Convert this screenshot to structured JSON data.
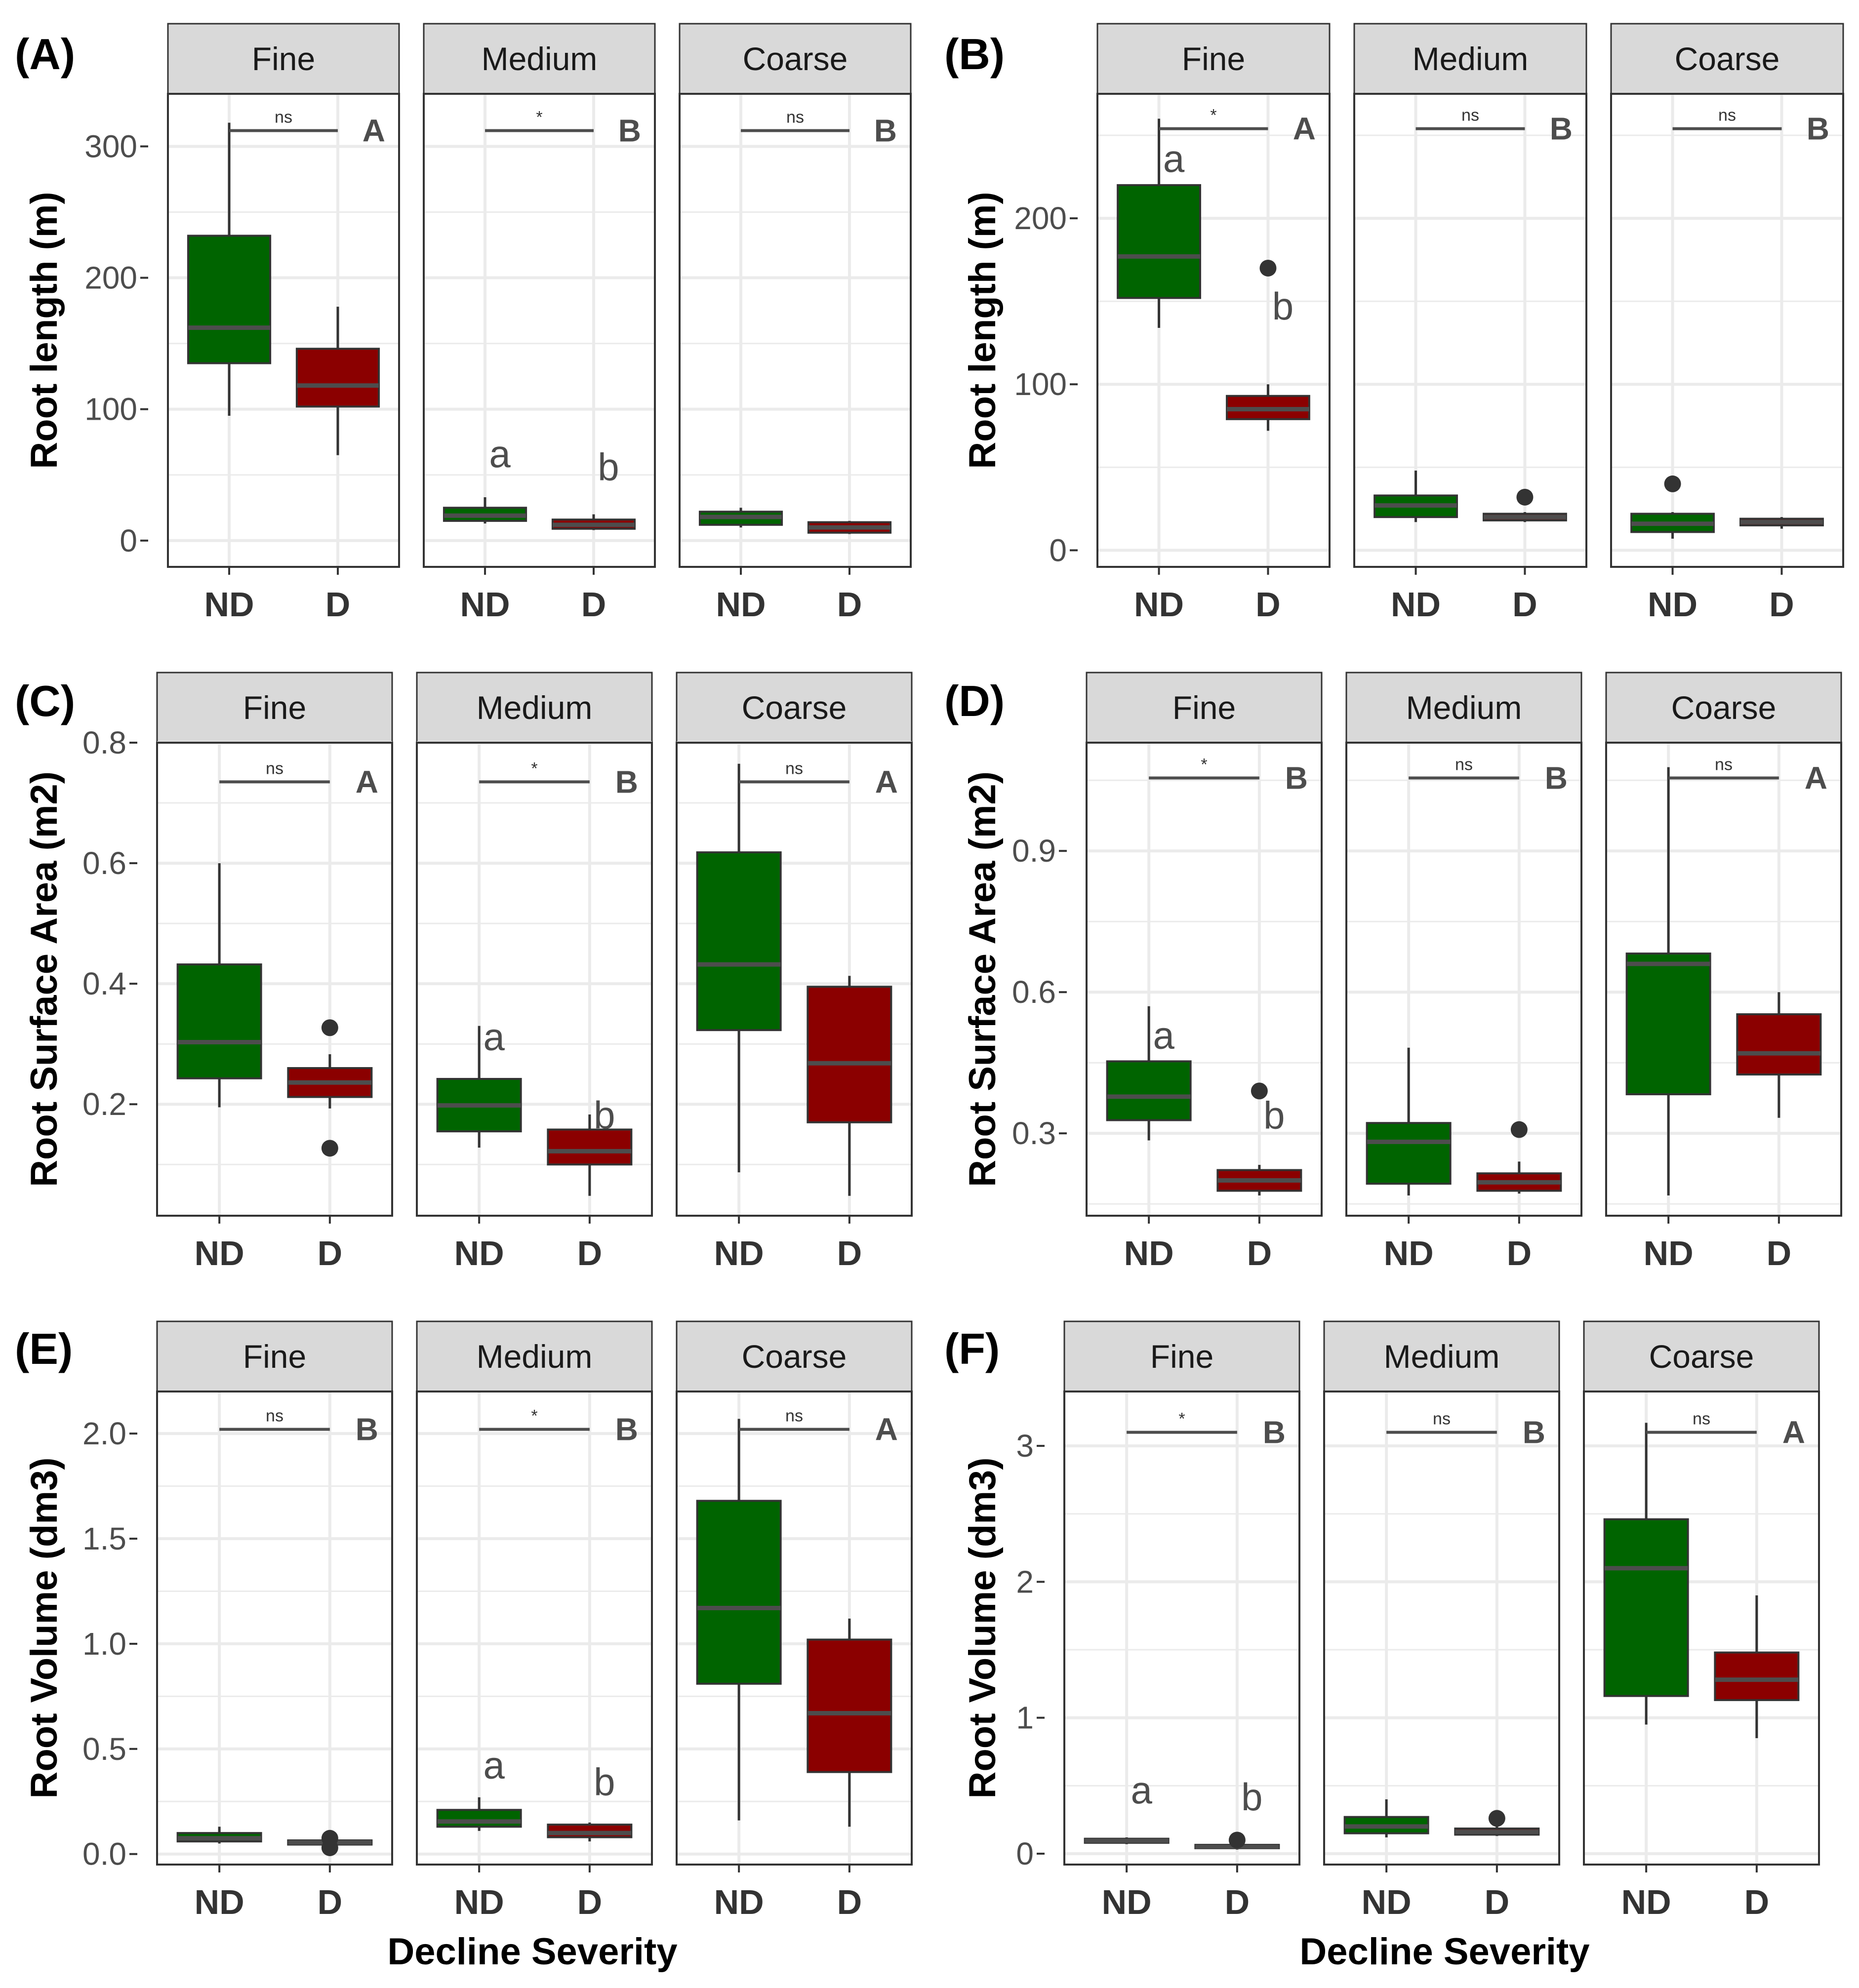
{
  "figure": {
    "x_axis_title": "Decline Severity",
    "facet_labels": [
      "Fine",
      "Medium",
      "Coarse"
    ],
    "x_categories": [
      "ND",
      "D"
    ],
    "colors": {
      "ND": "#006400",
      "D": "#8b0000",
      "strip_bg": "#d9d9d9",
      "grid": "#ebebeb",
      "median": "#4d4d4d"
    }
  },
  "chart_data": [
    {
      "type": "box",
      "panel_label": "(A)",
      "ylabel": "Root length (m)",
      "ylim": [
        -20,
        340
      ],
      "yticks": [
        0,
        100,
        200,
        300
      ],
      "yminor": [
        50,
        150,
        250
      ],
      "facets": [
        {
          "name": "Fine",
          "size_letter": "A",
          "sig": "ns",
          "sig_y": 312,
          "boxes": [
            {
              "category": "ND",
              "whisker_low": 95,
              "q1": 135,
              "median": 162,
              "q3": 232,
              "whisker_high": 318,
              "outliers": []
            },
            {
              "category": "D",
              "whisker_low": 65,
              "q1": 102,
              "median": 118,
              "q3": 146,
              "whisker_high": 178,
              "outliers": []
            }
          ],
          "group_letters": []
        },
        {
          "name": "Medium",
          "size_letter": "B",
          "sig": "*",
          "sig_y": 312,
          "boxes": [
            {
              "category": "ND",
              "whisker_low": 13,
              "q1": 15,
              "median": 19,
              "q3": 25,
              "whisker_high": 33,
              "outliers": []
            },
            {
              "category": "D",
              "whisker_low": 8,
              "q1": 9,
              "median": 12,
              "q3": 16,
              "whisker_high": 20,
              "outliers": []
            }
          ],
          "group_letters": [
            {
              "category": "ND",
              "text": "a",
              "y": 56
            },
            {
              "category": "D",
              "text": "b",
              "y": 46
            }
          ]
        },
        {
          "name": "Coarse",
          "size_letter": "B",
          "sig": "ns",
          "sig_y": 312,
          "boxes": [
            {
              "category": "ND",
              "whisker_low": 10,
              "q1": 12,
              "median": 18,
              "q3": 22,
              "whisker_high": 25,
              "outliers": []
            },
            {
              "category": "D",
              "whisker_low": 5,
              "q1": 6,
              "median": 10,
              "q3": 14,
              "whisker_high": 15,
              "outliers": []
            }
          ],
          "group_letters": []
        }
      ]
    },
    {
      "type": "box",
      "panel_label": "(B)",
      "ylabel": "Root length (m)",
      "ylim": [
        -10,
        275
      ],
      "yticks": [
        0,
        100,
        200
      ],
      "yminor": [
        50,
        150,
        250
      ],
      "facets": [
        {
          "name": "Fine",
          "size_letter": "A",
          "sig": "*",
          "sig_y": 254,
          "boxes": [
            {
              "category": "ND",
              "whisker_low": 134,
              "q1": 152,
              "median": 177,
              "q3": 220,
              "whisker_high": 260,
              "outliers": []
            },
            {
              "category": "D",
              "whisker_low": 72,
              "q1": 79,
              "median": 85,
              "q3": 93,
              "whisker_high": 100,
              "outliers": [
                170
              ]
            }
          ],
          "group_letters": [
            {
              "category": "ND",
              "text": "a",
              "y": 228
            },
            {
              "category": "D",
              "text": "b",
              "y": 139
            }
          ]
        },
        {
          "name": "Medium",
          "size_letter": "B",
          "sig": "ns",
          "sig_y": 254,
          "boxes": [
            {
              "category": "ND",
              "whisker_low": 17,
              "q1": 20,
              "median": 27,
              "q3": 33,
              "whisker_high": 48,
              "outliers": []
            },
            {
              "category": "D",
              "whisker_low": 17,
              "q1": 18,
              "median": 20,
              "q3": 22,
              "whisker_high": 23,
              "outliers": [
                32
              ]
            }
          ],
          "group_letters": []
        },
        {
          "name": "Coarse",
          "size_letter": "B",
          "sig": "ns",
          "sig_y": 254,
          "boxes": [
            {
              "category": "ND",
              "whisker_low": 7,
              "q1": 11,
              "median": 16,
              "q3": 22,
              "whisker_high": 23,
              "outliers": [
                40
              ]
            },
            {
              "category": "D",
              "whisker_low": 13,
              "q1": 15,
              "median": 17,
              "q3": 19,
              "whisker_high": 20,
              "outliers": []
            }
          ],
          "group_letters": []
        }
      ]
    },
    {
      "type": "box",
      "panel_label": "(C)",
      "ylabel": "Root Surface Area (m2)",
      "ylim": [
        0.015,
        0.8
      ],
      "yticks": [
        0.2,
        0.4,
        0.6,
        0.8
      ],
      "yminor": [
        0.1,
        0.3,
        0.5,
        0.7
      ],
      "facets": [
        {
          "name": "Fine",
          "size_letter": "A",
          "sig": "ns",
          "sig_y": 0.735,
          "boxes": [
            {
              "category": "ND",
              "whisker_low": 0.195,
              "q1": 0.243,
              "median": 0.303,
              "q3": 0.432,
              "whisker_high": 0.6,
              "outliers": []
            },
            {
              "category": "D",
              "whisker_low": 0.193,
              "q1": 0.212,
              "median": 0.236,
              "q3": 0.26,
              "whisker_high": 0.283,
              "outliers": [
                0.327,
                0.127
              ]
            }
          ],
          "group_letters": []
        },
        {
          "name": "Medium",
          "size_letter": "B",
          "sig": "*",
          "sig_y": 0.735,
          "boxes": [
            {
              "category": "ND",
              "whisker_low": 0.128,
              "q1": 0.155,
              "median": 0.198,
              "q3": 0.242,
              "whisker_high": 0.33,
              "outliers": []
            },
            {
              "category": "D",
              "whisker_low": 0.048,
              "q1": 0.1,
              "median": 0.122,
              "q3": 0.158,
              "whisker_high": 0.183,
              "outliers": []
            }
          ],
          "group_letters": [
            {
              "category": "ND",
              "text": "a",
              "y": 0.29
            },
            {
              "category": "D",
              "text": "b",
              "y": 0.16
            }
          ]
        },
        {
          "name": "Coarse",
          "size_letter": "A",
          "sig": "ns",
          "sig_y": 0.735,
          "boxes": [
            {
              "category": "ND",
              "whisker_low": 0.087,
              "q1": 0.323,
              "median": 0.432,
              "q3": 0.618,
              "whisker_high": 0.765,
              "outliers": []
            },
            {
              "category": "D",
              "whisker_low": 0.048,
              "q1": 0.17,
              "median": 0.268,
              "q3": 0.395,
              "whisker_high": 0.413,
              "outliers": []
            }
          ],
          "group_letters": []
        }
      ]
    },
    {
      "type": "box",
      "panel_label": "(D)",
      "ylabel": "Root Surface Area (m2)",
      "ylim": [
        0.125,
        1.13
      ],
      "yticks": [
        0.3,
        0.6,
        0.9
      ],
      "yminor": [
        0.15,
        0.45,
        0.75,
        1.05
      ],
      "facets": [
        {
          "name": "Fine",
          "size_letter": "B",
          "sig": "*",
          "sig_y": 1.055,
          "boxes": [
            {
              "category": "ND",
              "whisker_low": 0.285,
              "q1": 0.328,
              "median": 0.378,
              "q3": 0.453,
              "whisker_high": 0.57,
              "outliers": []
            },
            {
              "category": "D",
              "whisker_low": 0.168,
              "q1": 0.178,
              "median": 0.2,
              "q3": 0.222,
              "whisker_high": 0.233,
              "outliers": [
                0.39
              ]
            }
          ],
          "group_letters": [
            {
              "category": "ND",
              "text": "a",
              "y": 0.48
            },
            {
              "category": "D",
              "text": "b",
              "y": 0.31
            }
          ]
        },
        {
          "name": "Medium",
          "size_letter": "B",
          "sig": "ns",
          "sig_y": 1.055,
          "boxes": [
            {
              "category": "ND",
              "whisker_low": 0.168,
              "q1": 0.193,
              "median": 0.282,
              "q3": 0.322,
              "whisker_high": 0.482,
              "outliers": []
            },
            {
              "category": "D",
              "whisker_low": 0.172,
              "q1": 0.178,
              "median": 0.196,
              "q3": 0.215,
              "whisker_high": 0.24,
              "outliers": [
                0.308
              ]
            }
          ],
          "group_letters": []
        },
        {
          "name": "Coarse",
          "size_letter": "A",
          "sig": "ns",
          "sig_y": 1.055,
          "boxes": [
            {
              "category": "ND",
              "whisker_low": 0.168,
              "q1": 0.383,
              "median": 0.66,
              "q3": 0.682,
              "whisker_high": 1.078,
              "outliers": []
            },
            {
              "category": "D",
              "whisker_low": 0.333,
              "q1": 0.425,
              "median": 0.47,
              "q3": 0.553,
              "whisker_high": 0.6,
              "outliers": []
            }
          ],
          "group_letters": []
        }
      ]
    },
    {
      "type": "box",
      "panel_label": "(E)",
      "ylabel": "Root Volume (dm3)",
      "ylim": [
        -0.05,
        2.2
      ],
      "yticks": [
        0.0,
        0.5,
        1.0,
        1.5,
        2.0
      ],
      "ytick_labels": [
        "0.0",
        "0.5",
        "1.0",
        "1.5",
        "2.0"
      ],
      "yminor": [
        0.25,
        0.75,
        1.25,
        1.75
      ],
      "facets": [
        {
          "name": "Fine",
          "size_letter": "B",
          "sig": "ns",
          "sig_y": 2.02,
          "boxes": [
            {
              "category": "ND",
              "whisker_low": 0.05,
              "q1": 0.06,
              "median": 0.075,
              "q3": 0.1,
              "whisker_high": 0.13,
              "outliers": []
            },
            {
              "category": "D",
              "whisker_low": 0.04,
              "q1": 0.045,
              "median": 0.055,
              "q3": 0.065,
              "whisker_high": 0.075,
              "outliers": [
                0.075,
                0.03
              ]
            }
          ],
          "group_letters": []
        },
        {
          "name": "Medium",
          "size_letter": "B",
          "sig": "*",
          "sig_y": 2.02,
          "boxes": [
            {
              "category": "ND",
              "whisker_low": 0.11,
              "q1": 0.13,
              "median": 0.155,
              "q3": 0.21,
              "whisker_high": 0.27,
              "outliers": []
            },
            {
              "category": "D",
              "whisker_low": 0.06,
              "q1": 0.08,
              "median": 0.1,
              "q3": 0.14,
              "whisker_high": 0.15,
              "outliers": []
            }
          ],
          "group_letters": [
            {
              "category": "ND",
              "text": "a",
              "y": 0.36
            },
            {
              "category": "D",
              "text": "b",
              "y": 0.28
            }
          ]
        },
        {
          "name": "Coarse",
          "size_letter": "A",
          "sig": "ns",
          "sig_y": 2.02,
          "boxes": [
            {
              "category": "ND",
              "whisker_low": 0.16,
              "q1": 0.81,
              "median": 1.17,
              "q3": 1.68,
              "whisker_high": 2.07,
              "outliers": []
            },
            {
              "category": "D",
              "whisker_low": 0.13,
              "q1": 0.39,
              "median": 0.67,
              "q3": 1.02,
              "whisker_high": 1.12,
              "outliers": []
            }
          ],
          "group_letters": []
        }
      ]
    },
    {
      "type": "box",
      "panel_label": "(F)",
      "ylabel": "Root Volume (dm3)",
      "ylim": [
        -0.08,
        3.4
      ],
      "yticks": [
        0,
        1,
        2,
        3
      ],
      "yminor": [
        0.5,
        1.5,
        2.5
      ],
      "facets": [
        {
          "name": "Fine",
          "size_letter": "B",
          "sig": "*",
          "sig_y": 3.1,
          "boxes": [
            {
              "category": "ND",
              "whisker_low": 0.07,
              "q1": 0.08,
              "median": 0.095,
              "q3": 0.11,
              "whisker_high": 0.12,
              "outliers": []
            },
            {
              "category": "D",
              "whisker_low": 0.03,
              "q1": 0.04,
              "median": 0.05,
              "q3": 0.065,
              "whisker_high": 0.075,
              "outliers": [
                0.1
              ]
            }
          ],
          "group_letters": [
            {
              "category": "ND",
              "text": "a",
              "y": 0.37
            },
            {
              "category": "D",
              "text": "b",
              "y": 0.32
            }
          ]
        },
        {
          "name": "Medium",
          "size_letter": "B",
          "sig": "ns",
          "sig_y": 3.1,
          "boxes": [
            {
              "category": "ND",
              "whisker_low": 0.12,
              "q1": 0.15,
              "median": 0.2,
              "q3": 0.27,
              "whisker_high": 0.4,
              "outliers": []
            },
            {
              "category": "D",
              "whisker_low": 0.13,
              "q1": 0.14,
              "median": 0.16,
              "q3": 0.185,
              "whisker_high": 0.2,
              "outliers": [
                0.26
              ]
            }
          ],
          "group_letters": []
        },
        {
          "name": "Coarse",
          "size_letter": "A",
          "sig": "ns",
          "sig_y": 3.1,
          "boxes": [
            {
              "category": "ND",
              "whisker_low": 0.95,
              "q1": 1.16,
              "median": 2.1,
              "q3": 2.46,
              "whisker_high": 3.17,
              "outliers": []
            },
            {
              "category": "D",
              "whisker_low": 0.85,
              "q1": 1.13,
              "median": 1.28,
              "q3": 1.48,
              "whisker_high": 1.9,
              "outliers": []
            }
          ],
          "group_letters": []
        }
      ]
    }
  ]
}
